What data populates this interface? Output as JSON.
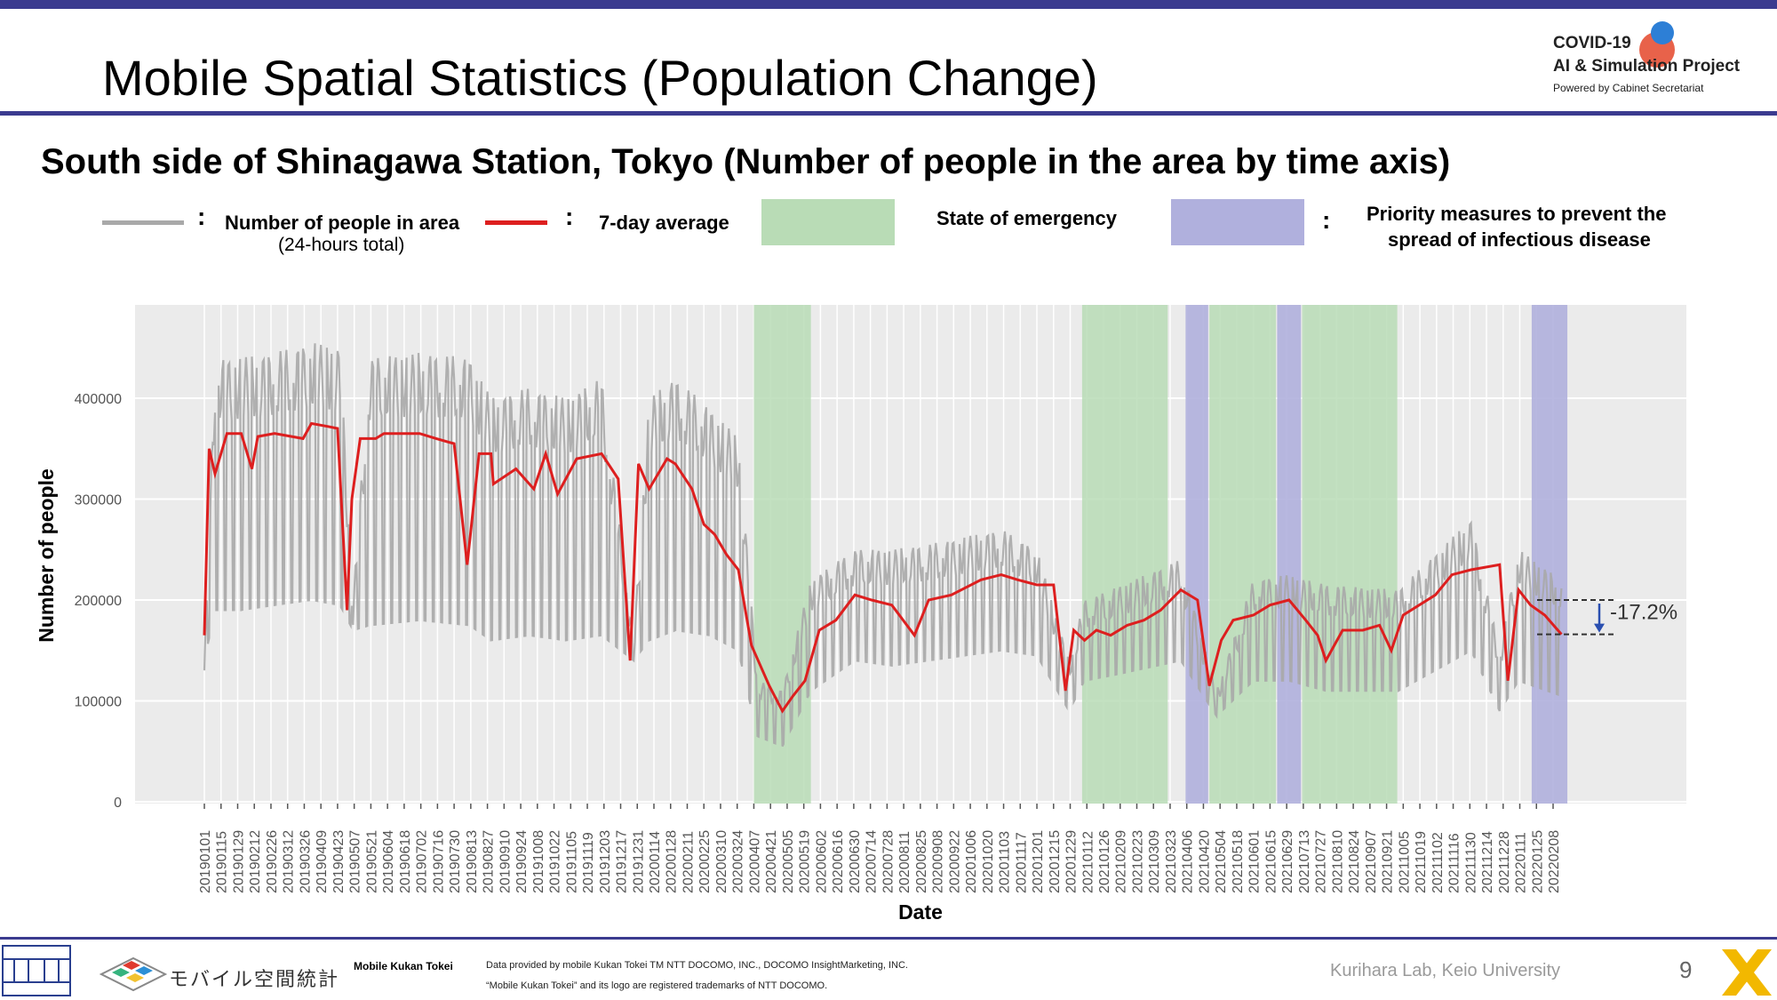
{
  "slide": {
    "title": "Mobile Spatial Statistics (Population Change)",
    "subtitle": "South side of Shinagawa Station, Tokyo (Number of people in the area by time axis)",
    "page_number": "9"
  },
  "logo": {
    "line1": "COVID-19",
    "line2": "AI & Simulation Project",
    "line3": "Powered by Cabinet Secretariat"
  },
  "legend": {
    "colon": ":",
    "daily_label": "Number of people in area",
    "daily_sub": "(24-hours total)",
    "avg_label": "7-day average",
    "emergency_label": "State of emergency",
    "priority_label_1": "Priority measures to prevent the",
    "priority_label_2": "spread of infectious disease"
  },
  "footer": {
    "mobile_logo_text": "モバイル空間統計",
    "mobile_kukan_tokei": "Mobile Kukan Tokei",
    "data_credit": "Data provided by mobile Kukan Tokei TM NTT DOCOMO, INC., DOCOMO InsightMarketing, INC.",
    "trademark": "“Mobile Kukan Tokei” and its logo are registered trademarks of NTT DOCOMO.",
    "lab": "Kurihara Lab, Keio University"
  },
  "colors": {
    "accent": "#3b3b8f",
    "daily_line": "#a9a9a9",
    "avg_line": "#dd1f1f",
    "emergency": "#b9dcb6",
    "priority": "#b0b0dd",
    "panel_bg": "#ebebeb"
  },
  "chart_data": {
    "type": "line",
    "xlabel": "Date",
    "ylabel": "Number of people",
    "ylim": [
      0,
      450000
    ],
    "yticks": [
      0,
      100000,
      200000,
      300000,
      400000
    ],
    "ytick_labels": [
      "0",
      "100000",
      "200000",
      "300000",
      "400000"
    ],
    "x_tick_labels": [
      "20190101",
      "20190115",
      "20190129",
      "20190212",
      "20190226",
      "20190312",
      "20190326",
      "20190409",
      "20190423",
      "20190507",
      "20190521",
      "20190604",
      "20190618",
      "20190702",
      "20190716",
      "20190730",
      "20190813",
      "20190827",
      "20190910",
      "20190924",
      "20191008",
      "20191022",
      "20191105",
      "20191119",
      "20191203",
      "20191217",
      "20191231",
      "20200114",
      "20200128",
      "20200211",
      "20200225",
      "20200310",
      "20200324",
      "20200407",
      "20200421",
      "20200505",
      "20200519",
      "20200602",
      "20200616",
      "20200630",
      "20200714",
      "20200728",
      "20200811",
      "20200825",
      "20200908",
      "20200922",
      "20201006",
      "20201020",
      "20201103",
      "20201117",
      "20201201",
      "20201215",
      "20201229",
      "20210112",
      "20210126",
      "20210209",
      "20210223",
      "20210309",
      "20210323",
      "20210406",
      "20210420",
      "20210504",
      "20210518",
      "20210601",
      "20210615",
      "20210629",
      "20210713",
      "20210727",
      "20210810",
      "20210824",
      "20210907",
      "20210921",
      "20211005",
      "20211019",
      "20211102",
      "20211116",
      "20211130",
      "20211214",
      "20211228",
      "20220111",
      "20220125",
      "20220208"
    ],
    "grid": true,
    "emergency_periods": [
      [
        "20200407",
        "20200525"
      ],
      [
        "20210108",
        "20210321"
      ],
      [
        "20210425",
        "20210620"
      ],
      [
        "20210712",
        "20210930"
      ]
    ],
    "priority_periods": [
      [
        "20210405",
        "20210424"
      ],
      [
        "20210621",
        "20210711"
      ],
      [
        "20220121",
        "20220220"
      ]
    ],
    "annotation": {
      "text": "-17.2%",
      "from_value": 200000,
      "to_value": 166000
    },
    "series": [
      {
        "name": "Number of people in area",
        "note": "daily, weekday/weekend oscillation",
        "x": [
          "20190101",
          "20190110",
          "20190201",
          "20190301",
          "20190401",
          "20190425",
          "20190506",
          "20190520",
          "20190701",
          "20190812",
          "20190830",
          "20191001",
          "20191101",
          "20191201",
          "20191228",
          "20200110",
          "20200201",
          "20200301",
          "20200325",
          "20200410",
          "20200501",
          "20200525",
          "20200701",
          "20200801",
          "20200901",
          "20201101",
          "20201201",
          "20201228",
          "20210110",
          "20210201",
          "20210401",
          "20210501",
          "20210601",
          "20210701",
          "20210801",
          "20211001",
          "20211201",
          "20211225",
          "20220110",
          "20220215"
        ],
        "weekday": [
          140000,
          440000,
          440000,
          445000,
          455000,
          450000,
          200000,
          440000,
          445000,
          440000,
          400000,
          410000,
          400000,
          420000,
          160000,
          400000,
          420000,
          390000,
          360000,
          120000,
          110000,
          220000,
          250000,
          250000,
          255000,
          270000,
          250000,
          140000,
          200000,
          210000,
          240000,
          110000,
          220000,
          225000,
          215000,
          210000,
          280000,
          150000,
          250000,
          220000
        ],
        "weekend": [
          140000,
          190000,
          190000,
          195000,
          200000,
          195000,
          170000,
          175000,
          180000,
          175000,
          160000,
          165000,
          160000,
          165000,
          140000,
          160000,
          170000,
          165000,
          150000,
          65000,
          55000,
          110000,
          140000,
          135000,
          140000,
          150000,
          145000,
          90000,
          120000,
          125000,
          140000,
          85000,
          120000,
          120000,
          110000,
          110000,
          150000,
          90000,
          120000,
          105000
        ]
      },
      {
        "name": "7-day average",
        "x": [
          "20190101",
          "20190105",
          "20190110",
          "20190120",
          "20190201",
          "20190210",
          "20190215",
          "20190301",
          "20190325",
          "20190401",
          "20190415",
          "20190423",
          "20190501",
          "20190505",
          "20190512",
          "20190525",
          "20190601",
          "20190701",
          "20190715",
          "20190730",
          "20190810",
          "20190820",
          "20190830",
          "20190901",
          "20190920",
          "20191005",
          "20191015",
          "20191025",
          "20191110",
          "20191201",
          "20191215",
          "20191225",
          "20200101",
          "20200110",
          "20200125",
          "20200201",
          "20200215",
          "20200225",
          "20200305",
          "20200315",
          "20200325",
          "20200405",
          "20200420",
          "20200501",
          "20200510",
          "20200520",
          "20200601",
          "20200615",
          "20200701",
          "20200715",
          "20200801",
          "20200820",
          "20200901",
          "20200920",
          "20201015",
          "20201101",
          "20201115",
          "20201201",
          "20201215",
          "20201225",
          "20210101",
          "20210110",
          "20210120",
          "20210201",
          "20210215",
          "20210301",
          "20210315",
          "20210401",
          "20210415",
          "20210425",
          "20210505",
          "20210515",
          "20210601",
          "20210615",
          "20210701",
          "20210715",
          "20210725",
          "20210801",
          "20210815",
          "20210901",
          "20210915",
          "20210925",
          "20211005",
          "20211101",
          "20211115",
          "20211201",
          "20211225",
          "20220101",
          "20220110",
          "20220120",
          "20220201",
          "20220215"
        ],
        "y": [
          165000,
          350000,
          325000,
          365000,
          365000,
          330000,
          362000,
          365000,
          360000,
          375000,
          372000,
          370000,
          190000,
          300000,
          360000,
          360000,
          365000,
          365000,
          360000,
          355000,
          235000,
          345000,
          345000,
          315000,
          330000,
          310000,
          345000,
          305000,
          340000,
          345000,
          320000,
          140000,
          335000,
          310000,
          340000,
          335000,
          310000,
          275000,
          265000,
          245000,
          230000,
          155000,
          115000,
          90000,
          105000,
          120000,
          170000,
          180000,
          205000,
          200000,
          195000,
          165000,
          200000,
          205000,
          220000,
          225000,
          220000,
          215000,
          215000,
          110000,
          170000,
          160000,
          170000,
          165000,
          175000,
          180000,
          190000,
          210000,
          200000,
          115000,
          160000,
          180000,
          185000,
          195000,
          200000,
          180000,
          165000,
          140000,
          170000,
          170000,
          175000,
          150000,
          185000,
          205000,
          225000,
          230000,
          235000,
          120000,
          210000,
          195000,
          185000,
          166000
        ]
      }
    ]
  }
}
